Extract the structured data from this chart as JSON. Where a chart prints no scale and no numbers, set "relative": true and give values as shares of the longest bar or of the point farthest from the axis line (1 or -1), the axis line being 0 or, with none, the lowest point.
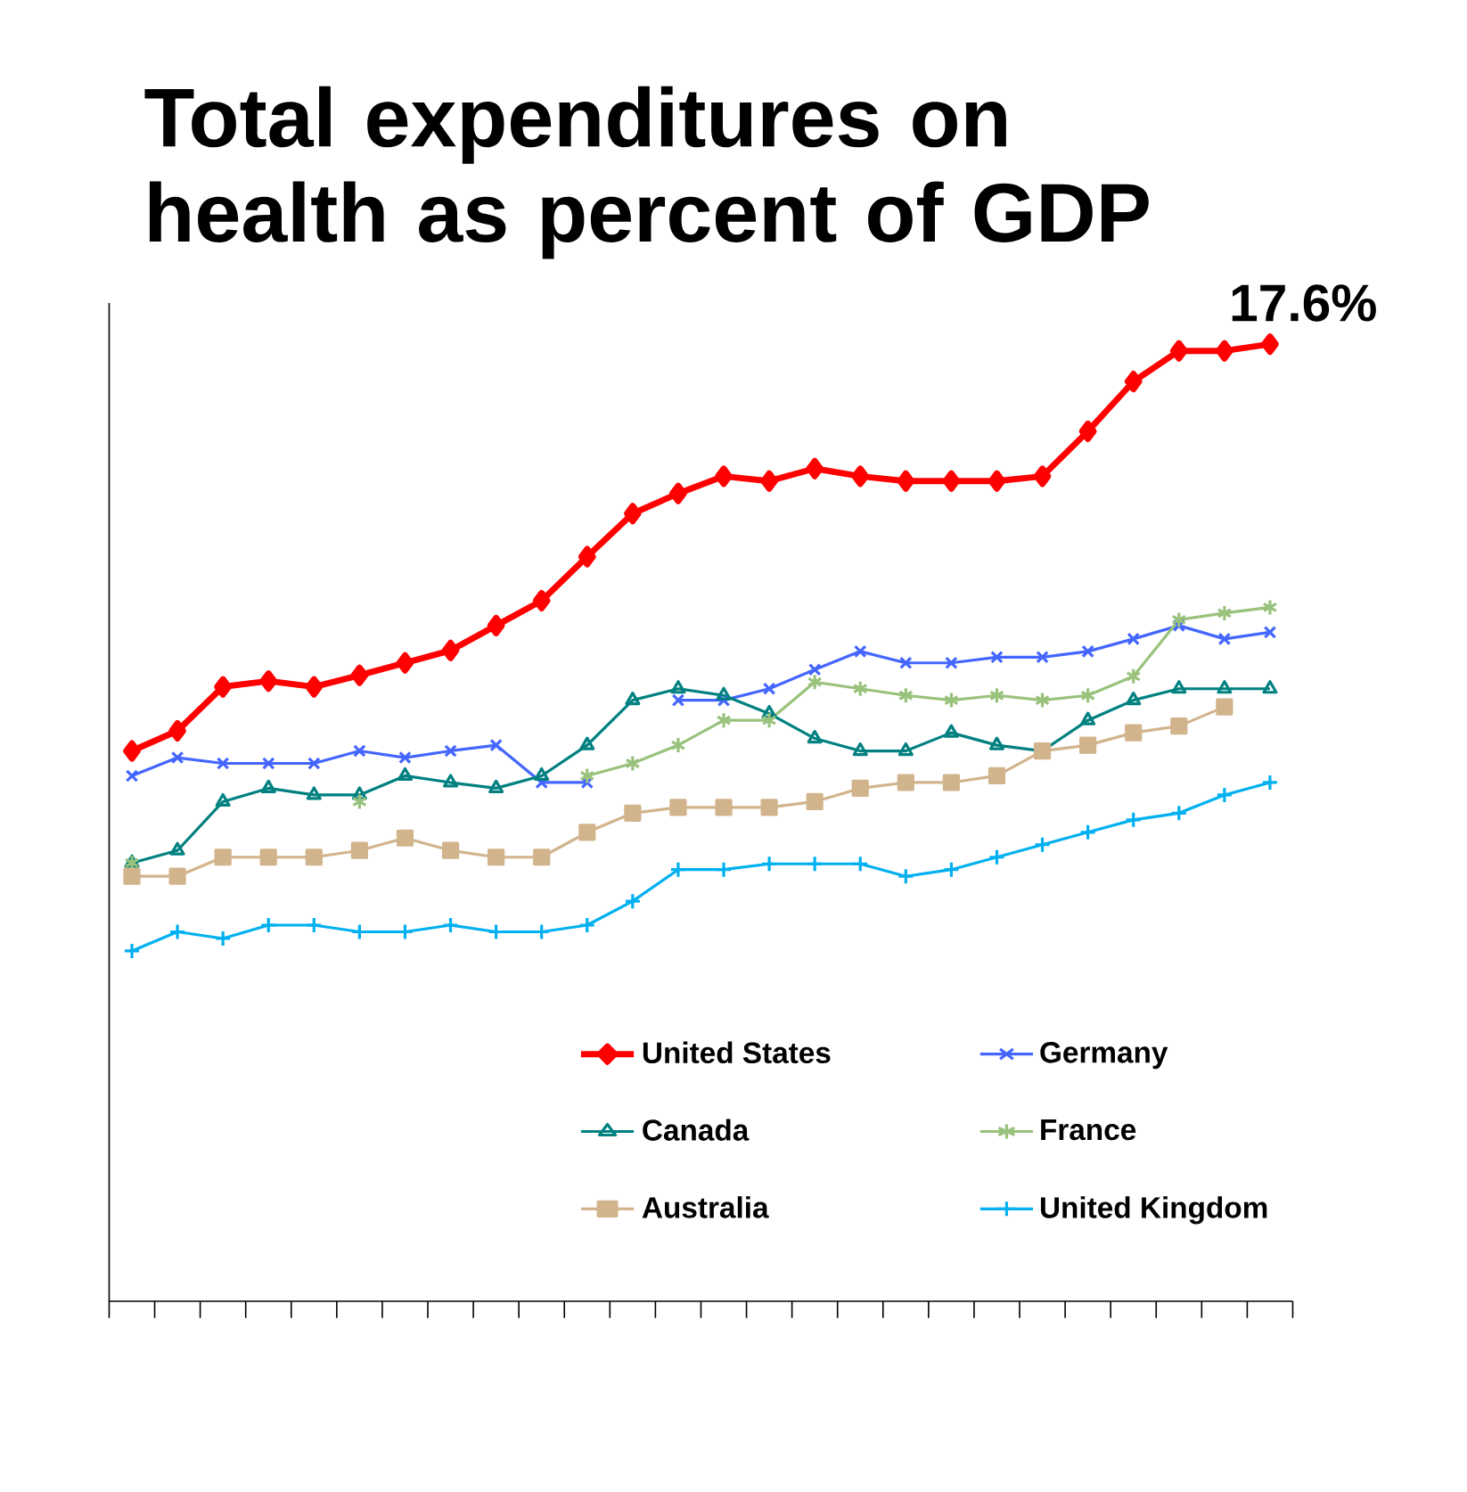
{
  "chart_data": {
    "type": "line",
    "title": "Total expenditures on health as percent of GDP",
    "relative": true,
    "categories": [
      null,
      null,
      null,
      null,
      null,
      null,
      null,
      null,
      null,
      null,
      null,
      null,
      null,
      null,
      null,
      null,
      null,
      null,
      null,
      null,
      null,
      null,
      null,
      null,
      null,
      null
    ],
    "series": [
      {
        "name": "United States",
        "color": "#ff0000",
        "marker": "diamond",
        "values": [
          0.575,
          0.596,
          0.642,
          0.648,
          0.642,
          0.654,
          0.667,
          0.68,
          0.706,
          0.732,
          0.778,
          0.823,
          0.844,
          0.862,
          0.857,
          0.87,
          0.862,
          0.857,
          0.857,
          0.857,
          0.862,
          0.909,
          0.961,
          0.993,
          0.993,
          1
        ]
      },
      {
        "name": "Germany",
        "color": "#4466ff",
        "marker": "cross",
        "values": [
          0.549,
          0.568,
          0.562,
          0.562,
          0.562,
          0.575,
          0.568,
          0.575,
          0.581,
          0.542,
          0.542,
          null,
          0.628,
          0.628,
          0.64,
          0.66,
          0.679,
          0.667,
          0.667,
          0.673,
          0.673,
          0.679,
          0.692,
          0.706,
          0.692,
          0.699
        ]
      },
      {
        "name": "Canada",
        "color": "#008080",
        "marker": "triangle",
        "values": [
          0.458,
          0.471,
          0.522,
          0.536,
          0.529,
          0.529,
          0.549,
          0.542,
          0.536,
          0.549,
          0.581,
          0.628,
          0.64,
          0.633,
          0.614,
          0.588,
          0.575,
          0.575,
          0.594,
          0.581,
          0.575,
          0.607,
          0.628,
          0.64,
          0.64,
          0.64
        ]
      },
      {
        "name": "France",
        "color": "#99c27c",
        "marker": "cross",
        "values": [
          0.458,
          null,
          null,
          null,
          null,
          0.522,
          null,
          null,
          null,
          null,
          0.549,
          0.562,
          0.581,
          0.607,
          0.607,
          0.647,
          0.64,
          0.633,
          0.628,
          0.633,
          0.628,
          0.633,
          0.653,
          0.712,
          0.719,
          0.725
        ]
      },
      {
        "name": "Australia",
        "color": "#d2b48c",
        "marker": "square",
        "values": [
          0.444,
          0.444,
          0.464,
          0.464,
          0.464,
          0.471,
          0.484,
          0.471,
          0.464,
          0.464,
          0.49,
          0.51,
          0.516,
          0.516,
          0.516,
          0.522,
          0.536,
          0.542,
          0.542,
          0.549,
          0.575,
          0.581,
          0.594,
          0.601,
          0.621,
          null
        ]
      },
      {
        "name": "United Kingdom",
        "color": "#00b0f0",
        "marker": "cross",
        "values": [
          0.366,
          0.386,
          0.379,
          0.393,
          0.393,
          0.386,
          0.386,
          0.393,
          0.386,
          0.386,
          0.393,
          0.418,
          0.451,
          0.451,
          0.457,
          0.457,
          0.457,
          0.444,
          0.451,
          0.464,
          0.477,
          0.49,
          0.503,
          0.51,
          0.529,
          0.542
        ]
      }
    ],
    "annotations": [
      "17.6%"
    ],
    "legend": "bottom",
    "grid": false,
    "line_style": "solid"
  }
}
